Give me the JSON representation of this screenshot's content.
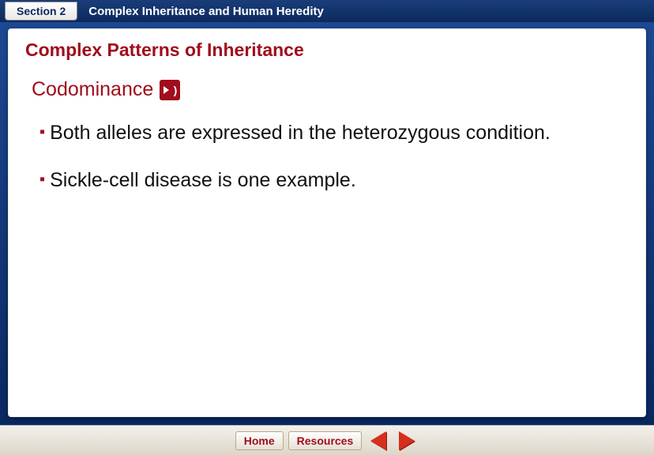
{
  "header": {
    "section_label": "Section 2",
    "chapter_title": "Complex Inheritance and Human Heredity"
  },
  "slide": {
    "title": "Complex Patterns of Inheritance",
    "subtitle": "Codominance",
    "bullets": [
      "Both alleles are expressed in the heterozygous condition.",
      "Sickle-cell disease is one example."
    ]
  },
  "nav": {
    "home_label": "Home",
    "resources_label": "Resources"
  },
  "colors": {
    "accent_red": "#a00d1c",
    "frame_blue_top": "#1d4892",
    "frame_blue_bottom": "#0a2860",
    "arrow_red": "#d62e1f",
    "bottom_bar": "#ddd7ca"
  }
}
